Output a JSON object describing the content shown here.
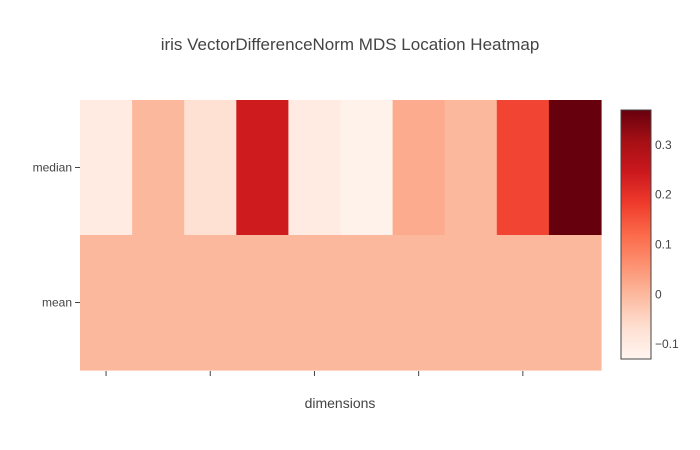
{
  "chart_data": {
    "type": "heatmap",
    "title": "iris VectorDifferenceNorm MDS Location Heatmap",
    "xlabel": "dimensions",
    "ylabel": "",
    "rows": [
      "median",
      "mean"
    ],
    "z": [
      [
        -0.1,
        0.0,
        -0.07,
        0.24,
        -0.1,
        -0.12,
        0.02,
        0.0,
        0.17,
        0.37
      ],
      [
        0.0,
        0.0,
        0.0,
        0.0,
        0.0,
        0.0,
        0.0,
        0.0,
        0.0,
        0.0
      ]
    ],
    "zlim": [
      -0.13,
      0.37
    ],
    "colorscale": "Reds",
    "colorbar_ticks": [
      -0.1,
      0,
      0.1,
      0.2,
      0.3
    ],
    "colorbar_tick_labels": [
      "−0.1",
      "0",
      "0.1",
      "0.2",
      "0.3"
    ],
    "x_tick_labels": [
      "",
      "",
      "",
      "",
      ""
    ],
    "grid": false
  }
}
